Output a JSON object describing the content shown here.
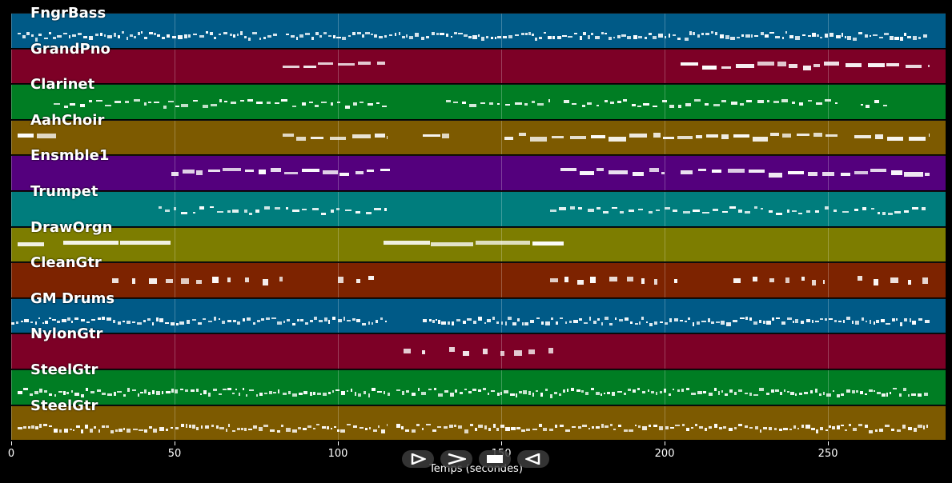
{
  "axis": {
    "label": "Temps (secondes)",
    "ticks": [
      "0",
      "50",
      "100",
      "150",
      "200",
      "250"
    ],
    "max_seconds": 286
  },
  "controls": {
    "play_icon": "play-icon",
    "forward_icon": "fast-forward-icon",
    "stop_icon": "stop-icon",
    "rewind_icon": "rewind-icon"
  },
  "tracks": [
    {
      "name": "FngrBass",
      "color": "#005a87",
      "density": "dense",
      "segments": [
        [
          2,
          82
        ],
        [
          84,
          205
        ],
        [
          206,
          281
        ]
      ]
    },
    {
      "name": "GrandPno",
      "color": "#7d0026",
      "density": "blocks",
      "segments": [
        [
          83,
          115
        ],
        [
          205,
          281
        ]
      ]
    },
    {
      "name": "Clarinet",
      "color": "#007d23",
      "density": "medium",
      "segments": [
        [
          13,
          115
        ],
        [
          133,
          165
        ],
        [
          169,
          253
        ],
        [
          260,
          268
        ]
      ]
    },
    {
      "name": "AahChoir",
      "color": "#7d5a00",
      "density": "blocks",
      "segments": [
        [
          2,
          14
        ],
        [
          83,
          115
        ],
        [
          126,
          134
        ],
        [
          151,
          203
        ],
        [
          204,
          253
        ],
        [
          258,
          281
        ]
      ]
    },
    {
      "name": "Ensmble1",
      "color": "#54007d",
      "density": "blocks",
      "segments": [
        [
          49,
          116
        ],
        [
          168,
          200
        ],
        [
          205,
          252
        ],
        [
          254,
          281
        ]
      ]
    },
    {
      "name": "Trumpet",
      "color": "#007d7d",
      "density": "medium",
      "segments": [
        [
          45,
          115
        ],
        [
          165,
          281
        ]
      ]
    },
    {
      "name": "DrawOrgn",
      "color": "#7d7d00",
      "density": "long",
      "segments": [
        [
          2,
          10
        ],
        [
          16,
          49
        ],
        [
          114,
          169
        ]
      ]
    },
    {
      "name": "CleanGtr",
      "color": "#7d2300",
      "density": "sparse",
      "segments": [
        [
          31,
          80
        ],
        [
          82,
          83
        ],
        [
          100,
          114
        ],
        [
          165,
          200
        ],
        [
          203,
          204
        ],
        [
          221,
          249
        ],
        [
          259,
          281
        ]
      ]
    },
    {
      "name": "GM Drums",
      "color": "#005a87",
      "density": "dense",
      "segments": [
        [
          0,
          115
        ],
        [
          126,
          281
        ]
      ]
    },
    {
      "name": "NylonGtr",
      "color": "#7d0026",
      "density": "sparse",
      "segments": [
        [
          120,
          129
        ],
        [
          134,
          166
        ]
      ]
    },
    {
      "name": "SteelGtr",
      "color": "#007d23",
      "density": "dense",
      "segments": [
        [
          2,
          82
        ],
        [
          83,
          116
        ],
        [
          118,
          203
        ],
        [
          204,
          281
        ]
      ]
    },
    {
      "name": "SteelGtr",
      "color": "#7d5a00",
      "density": "dense",
      "segments": [
        [
          2,
          115
        ],
        [
          118,
          281
        ]
      ]
    }
  ]
}
